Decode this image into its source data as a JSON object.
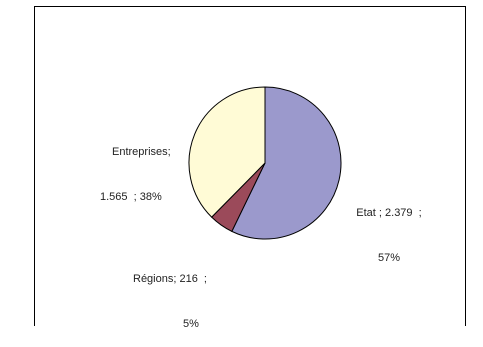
{
  "chart_data": {
    "type": "pie",
    "slices": [
      {
        "name": "Etat",
        "value": 2379,
        "percent": 57,
        "color": "#9b99cc"
      },
      {
        "name": "Régions",
        "value": 216,
        "percent": 5,
        "color": "#9b4a5a"
      },
      {
        "name": "Entreprises",
        "value": 1565,
        "percent": 38,
        "color": "#fffbd6"
      }
    ],
    "labels": [
      {
        "line1": "Etat ; 2.379  ;",
        "line2": "57%"
      },
      {
        "line1": "Régions; 216  ;",
        "line2": "5%"
      },
      {
        "line1": "Entreprises;",
        "line2": "1.565  ; 38%"
      }
    ]
  }
}
